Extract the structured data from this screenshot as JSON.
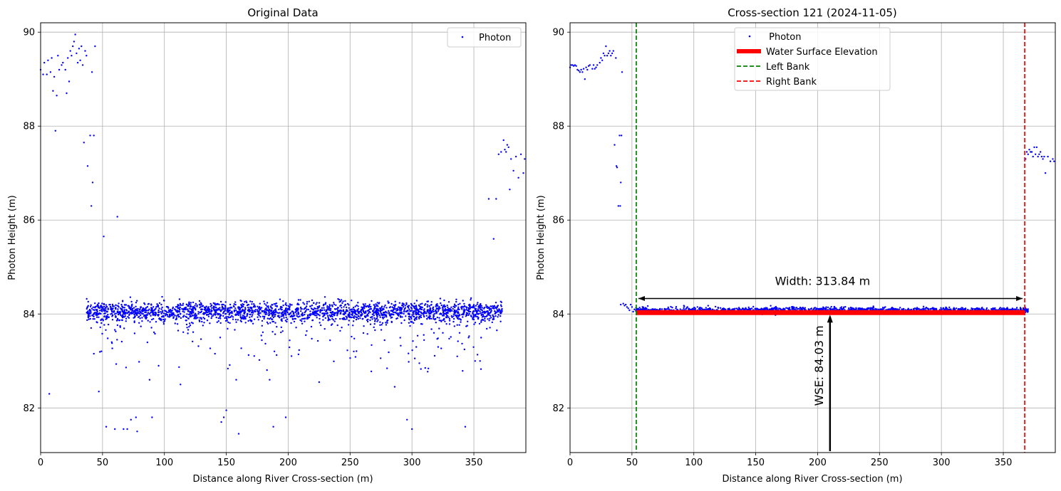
{
  "chart_data": [
    {
      "type": "scatter",
      "title": "Original Data",
      "xlabel": "Distance along River Cross-section (m)",
      "ylabel": "Photon Height (m)",
      "xlim": [
        0,
        392
      ],
      "ylim": [
        81.05,
        90.2
      ],
      "xticks": [
        0,
        50,
        100,
        150,
        200,
        250,
        300,
        350
      ],
      "yticks": [
        82,
        84,
        86,
        88,
        90
      ],
      "grid": true,
      "legend": {
        "placement": "top-right",
        "entries": [
          "Photon"
        ]
      },
      "colors": {
        "photon": "#0000ff"
      },
      "series": [
        {
          "name": "Photon",
          "scatter_top_left_bank": [
            [
              0,
              89.2
            ],
            [
              2,
              89.1
            ],
            [
              3,
              89.35
            ],
            [
              5,
              89.1
            ],
            [
              6,
              89.4
            ],
            [
              8,
              89.15
            ],
            [
              9,
              89.45
            ],
            [
              10,
              88.75
            ],
            [
              11,
              89.05
            ],
            [
              12,
              87.9
            ],
            [
              13,
              88.65
            ],
            [
              14,
              89.5
            ],
            [
              15,
              89.2
            ],
            [
              17,
              89.3
            ],
            [
              18,
              89.35
            ],
            [
              20,
              89.2
            ],
            [
              21,
              88.7
            ],
            [
              22,
              89.45
            ],
            [
              23,
              88.95
            ],
            [
              24,
              89.6
            ],
            [
              25,
              89.5
            ],
            [
              26,
              89.7
            ],
            [
              27,
              89.8
            ],
            [
              28,
              89.95
            ],
            [
              29,
              89.55
            ],
            [
              30,
              89.35
            ],
            [
              31,
              89.65
            ],
            [
              32,
              89.4
            ],
            [
              33,
              89.7
            ],
            [
              34,
              89.3
            ],
            [
              35,
              87.65
            ],
            [
              36,
              89.6
            ],
            [
              37,
              89.5
            ],
            [
              38,
              87.15
            ],
            [
              40,
              87.8
            ],
            [
              41,
              86.3
            ],
            [
              41.5,
              89.15
            ],
            [
              42,
              86.8
            ],
            [
              43,
              87.8
            ],
            [
              44,
              89.7
            ]
          ],
          "scatter_right_bank": [
            [
              362,
              86.45
            ],
            [
              366,
              85.6
            ],
            [
              368,
              86.45
            ],
            [
              370,
              87.4
            ],
            [
              372,
              87.45
            ],
            [
              374,
              87.7
            ],
            [
              375,
              87.5
            ],
            [
              376,
              87.45
            ],
            [
              377,
              87.6
            ],
            [
              378,
              87.55
            ],
            [
              379,
              86.65
            ],
            [
              380,
              87.3
            ],
            [
              382,
              87.05
            ],
            [
              384,
              87.35
            ],
            [
              386,
              86.9
            ],
            [
              388,
              87.4
            ],
            [
              390,
              87.0
            ],
            [
              391,
              87.3
            ]
          ],
          "scatter_outliers": [
            [
              7,
              82.3
            ],
            [
              47,
              82.35
            ],
            [
              51,
              85.65
            ],
            [
              53,
              81.6
            ],
            [
              60,
              81.55
            ],
            [
              62,
              86.07
            ],
            [
              67,
              81.55
            ],
            [
              70,
              81.55
            ],
            [
              73,
              81.75
            ],
            [
              77,
              81.8
            ],
            [
              78,
              81.5
            ],
            [
              88,
              82.6
            ],
            [
              90,
              81.8
            ],
            [
              113,
              82.5
            ],
            [
              146,
              81.7
            ],
            [
              148,
              81.8
            ],
            [
              150,
              81.95
            ],
            [
              158,
              82.6
            ],
            [
              160,
              81.45
            ],
            [
              185,
              82.6
            ],
            [
              188,
              81.6
            ],
            [
              198,
              81.8
            ],
            [
              225,
              82.55
            ],
            [
              286,
              82.45
            ],
            [
              296,
              81.75
            ],
            [
              300,
              81.55
            ],
            [
              343,
              81.6
            ],
            [
              351,
              83.0
            ],
            [
              355,
              83.0
            ]
          ],
          "water_band": {
            "x_range": [
              37,
              373
            ],
            "center": 84.05,
            "spread": 0.2,
            "scatter_below_min": 82.9
          }
        }
      ]
    },
    {
      "type": "scatter",
      "title": "Cross-section 121 (2024-11-05)",
      "xlabel": "Distance along River Cross-section (m)",
      "ylabel": "Photon Height (m)",
      "xlim": [
        0,
        392
      ],
      "ylim": [
        81.05,
        90.2
      ],
      "xticks": [
        0,
        50,
        100,
        150,
        200,
        250,
        300,
        350
      ],
      "yticks": [
        82,
        84,
        86,
        88,
        90
      ],
      "grid": true,
      "legend": {
        "placement": "upper-center",
        "entries": [
          " Photon",
          "Water Surface Elevation",
          "Left Bank",
          "Right Bank"
        ]
      },
      "colors": {
        "photon": "#0000ff",
        "wse": "#ff0000",
        "left_bank": "#008000",
        "right_bank": "#ff0000"
      },
      "left_bank_x": 53.5,
      "right_bank_x": 367.3,
      "wse": 84.03,
      "width_m": 313.84,
      "width_label": "Width: 313.84 m",
      "wse_label": "WSE: 84.03 m",
      "width_arrow_y": 84.33,
      "wse_arrow_x": 210,
      "series": [
        {
          "name": " Photon",
          "scatter_left": [
            [
              0,
              89.25
            ],
            [
              1,
              89.3
            ],
            [
              2,
              89.3
            ],
            [
              3,
              89.28
            ],
            [
              4,
              89.3
            ],
            [
              5,
              89.28
            ],
            [
              6,
              89.2
            ],
            [
              7,
              89.18
            ],
            [
              8,
              89.15
            ],
            [
              9,
              89.2
            ],
            [
              10,
              89.15
            ],
            [
              11,
              89.22
            ],
            [
              12,
              89.0
            ],
            [
              13,
              89.25
            ],
            [
              14,
              89.2
            ],
            [
              15,
              89.28
            ],
            [
              16,
              89.3
            ],
            [
              18,
              89.22
            ],
            [
              19,
              89.3
            ],
            [
              20,
              89.22
            ],
            [
              21,
              89.25
            ],
            [
              22,
              89.3
            ],
            [
              24,
              89.35
            ],
            [
              25,
              89.45
            ],
            [
              26,
              89.4
            ],
            [
              27,
              89.55
            ],
            [
              28,
              89.5
            ],
            [
              29,
              89.7
            ],
            [
              30,
              89.5
            ],
            [
              31,
              89.55
            ],
            [
              32,
              89.6
            ],
            [
              33,
              89.5
            ],
            [
              34,
              89.55
            ],
            [
              35,
              89.6
            ],
            [
              36,
              87.6
            ],
            [
              37,
              89.45
            ],
            [
              37.5,
              87.15
            ],
            [
              38,
              87.12
            ],
            [
              39,
              86.3
            ],
            [
              40,
              87.8
            ],
            [
              40.5,
              86.3
            ],
            [
              41,
              86.8
            ],
            [
              41.5,
              87.8
            ],
            [
              42,
              89.15
            ]
          ],
          "scatter_right": [
            [
              368,
              87.3
            ],
            [
              369,
              87.45
            ],
            [
              370,
              87.4
            ],
            [
              371,
              87.5
            ],
            [
              372,
              87.45
            ],
            [
              373,
              87.45
            ],
            [
              374,
              87.35
            ],
            [
              375,
              87.55
            ],
            [
              376,
              87.4
            ],
            [
              377,
              87.55
            ],
            [
              378,
              87.35
            ],
            [
              379,
              87.4
            ],
            [
              380,
              87.45
            ],
            [
              381,
              87.35
            ],
            [
              382,
              87.3
            ],
            [
              383,
              87.35
            ],
            [
              384,
              87.0
            ],
            [
              386,
              87.35
            ],
            [
              388,
              87.25
            ],
            [
              390,
              87.3
            ],
            [
              391,
              87.25
            ]
          ],
          "scatter_edge": [
            [
              41,
              84.2
            ],
            [
              43,
              84.22
            ],
            [
              44,
              84.18
            ],
            [
              45,
              84.2
            ],
            [
              46,
              84.15
            ],
            [
              47,
              84.12
            ],
            [
              48,
              84.08
            ],
            [
              49,
              84.2
            ],
            [
              50,
              84.15
            ],
            [
              51,
              84.05
            ],
            [
              52,
              84.1
            ]
          ],
          "water_band": {
            "x_range": [
              53,
              371
            ],
            "center": 84.08,
            "spread": 0.06
          }
        }
      ]
    }
  ]
}
